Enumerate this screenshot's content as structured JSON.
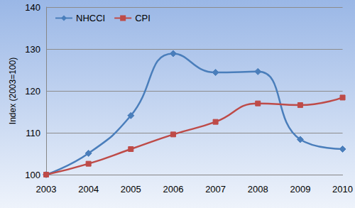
{
  "chart_data": {
    "type": "line",
    "y_label": "Index (2003=100)",
    "categories": [
      "2003",
      "2004",
      "2005",
      "2006",
      "2007",
      "2008",
      "2009",
      "2010"
    ],
    "series": [
      {
        "name": "NHCCI",
        "color": "#4a7ebb",
        "marker": "diamond",
        "line_style": "smooth",
        "values": [
          100,
          105.1,
          114.1,
          128.9,
          124.4,
          124.6,
          108.4,
          106.1
        ]
      },
      {
        "name": "CPI",
        "color": "#be4b48",
        "marker": "square",
        "line_style": "smooth",
        "values": [
          100,
          102.6,
          106.1,
          109.6,
          112.6,
          117.0,
          116.6,
          118.4
        ]
      }
    ],
    "ylim": [
      100,
      140
    ],
    "yticks": [
      100,
      110,
      120,
      130,
      140
    ],
    "grid": true,
    "legend": "top-left"
  }
}
